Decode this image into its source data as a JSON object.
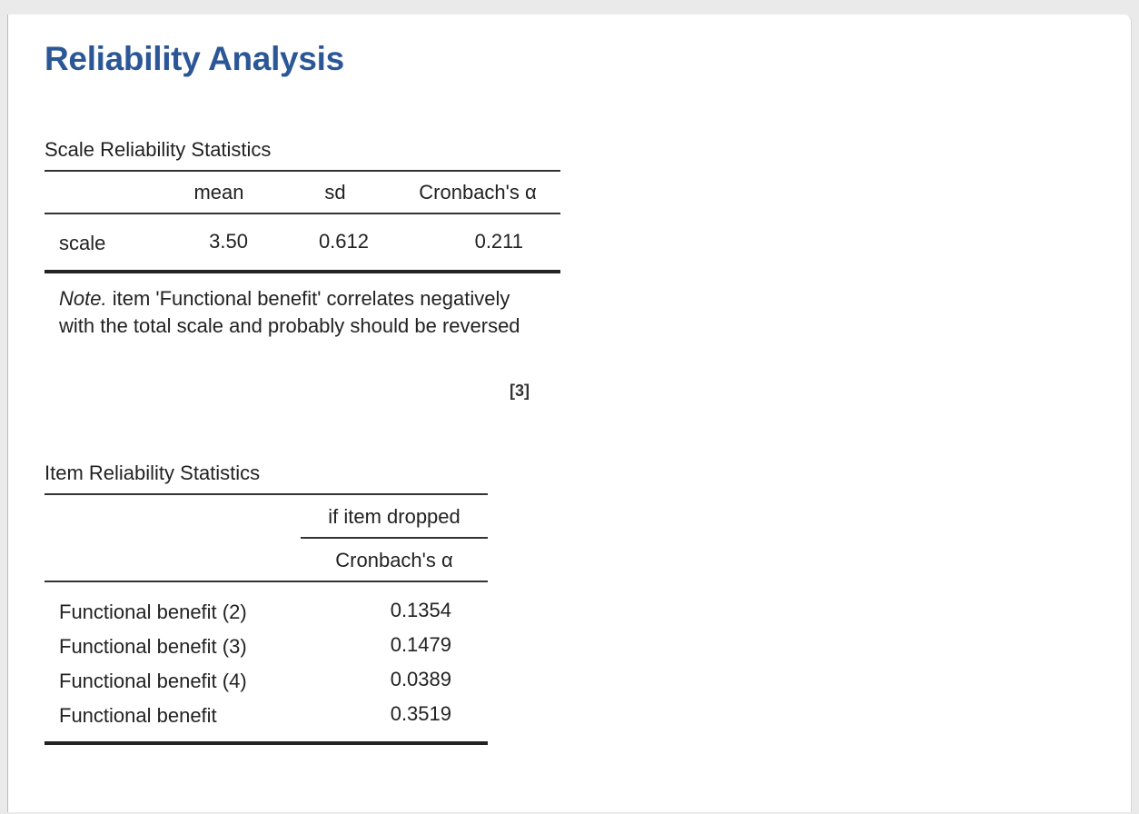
{
  "title": "Reliability Analysis",
  "scale_table": {
    "title": "Scale Reliability Statistics",
    "headers": [
      "mean",
      "sd",
      "Cronbach's α"
    ],
    "rows": [
      {
        "label": "scale",
        "mean": "3.50",
        "sd": "0.612",
        "alpha": "0.211"
      }
    ],
    "note_prefix": "Note.",
    "note_text": " item 'Functional benefit' correlates negatively with the total scale and probably should be reversed",
    "reference": "[3]"
  },
  "item_table": {
    "title": "Item Reliability Statistics",
    "group_header": "if item dropped",
    "subheader": "Cronbach's α",
    "rows": [
      {
        "label": "Functional benefit (2)",
        "alpha": "0.1354"
      },
      {
        "label": "Functional benefit (3)",
        "alpha": "0.1479"
      },
      {
        "label": "Functional benefit (4)",
        "alpha": "0.0389"
      },
      {
        "label": "Functional benefit",
        "alpha": "0.3519"
      }
    ]
  },
  "colors": {
    "title": "#2c5797",
    "background": "#eaeaea",
    "panel": "#ffffff"
  }
}
